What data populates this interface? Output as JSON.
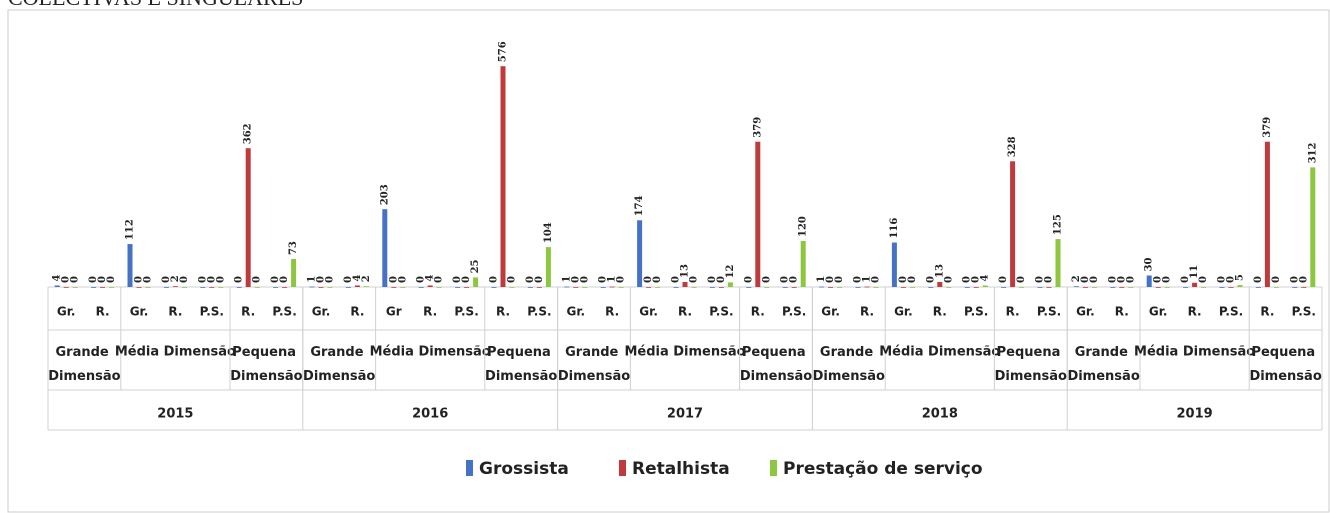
{
  "chart_data": {
    "type": "bar",
    "title": "COLECTIVAS E SINGULARES",
    "years": [
      {
        "label": "2015",
        "groups": [
          {
            "label": "Grande Dimensão",
            "categories": [
              "Gr.",
              "R."
            ]
          },
          {
            "label": "Média Dimensão",
            "categories": [
              "Gr.",
              "R.",
              "P.S."
            ]
          },
          {
            "label": "Pequena Dimensão",
            "categories": [
              "R.",
              "P.S."
            ]
          }
        ]
      },
      {
        "label": "2016",
        "groups": [
          {
            "label": "Grande Dimensão",
            "categories": [
              "Gr.",
              "R."
            ]
          },
          {
            "label": "Média Dimensão",
            "categories": [
              "Gr",
              "R.",
              "P.S."
            ]
          },
          {
            "label": "Pequena Dimensão",
            "categories": [
              "R.",
              "P.S."
            ]
          }
        ]
      },
      {
        "label": "2017",
        "groups": [
          {
            "label": "Grande Dimensão",
            "categories": [
              "Gr.",
              "R."
            ]
          },
          {
            "label": "Média Dimensão",
            "categories": [
              "Gr.",
              "R.",
              "P.S."
            ]
          },
          {
            "label": "Pequena Dimensão",
            "categories": [
              "R.",
              "P.S."
            ]
          }
        ]
      },
      {
        "label": "2018",
        "groups": [
          {
            "label": "Grande Dimensão",
            "categories": [
              "Gr.",
              "R."
            ]
          },
          {
            "label": "Média Dimensão",
            "categories": [
              "Gr.",
              "R.",
              "P.S."
            ]
          },
          {
            "label": "Pequena Dimensão",
            "categories": [
              "R.",
              "P.S."
            ]
          }
        ]
      },
      {
        "label": "2019",
        "groups": [
          {
            "label": "Grande Dimensão",
            "categories": [
              "Gr.",
              "R."
            ]
          },
          {
            "label": "Média Dimensão",
            "categories": [
              "Gr.",
              "R.",
              "P.S."
            ]
          },
          {
            "label": "Pequena Dimensão",
            "categories": [
              "R.",
              "P.S."
            ]
          }
        ]
      }
    ],
    "series": [
      {
        "name": "Grossista",
        "color": "#4472c4",
        "values": [
          4,
          0,
          112,
          0,
          0,
          0,
          0,
          1,
          0,
          203,
          0,
          0,
          0,
          0,
          1,
          0,
          174,
          0,
          0,
          0,
          0,
          1,
          0,
          116,
          0,
          0,
          0,
          0,
          2,
          0,
          30,
          0,
          0,
          0,
          0
        ]
      },
      {
        "name": "Retalhista",
        "color": "#c0393b",
        "values": [
          0,
          0,
          0,
          2,
          0,
          362,
          0,
          0,
          4,
          0,
          4,
          0,
          576,
          0,
          0,
          1,
          0,
          13,
          0,
          379,
          0,
          0,
          1,
          0,
          13,
          0,
          328,
          0,
          0,
          0,
          0,
          11,
          0,
          379,
          0
        ]
      },
      {
        "name": "Prestação de serviço",
        "color": "#8dc63f",
        "values": [
          0,
          0,
          0,
          0,
          0,
          0,
          73,
          0,
          2,
          0,
          0,
          25,
          0,
          104,
          0,
          0,
          0,
          0,
          12,
          0,
          120,
          0,
          0,
          0,
          0,
          4,
          0,
          125,
          0,
          0,
          0,
          0,
          5,
          0,
          312
        ]
      }
    ],
    "ylim": [
      0,
      600
    ]
  }
}
